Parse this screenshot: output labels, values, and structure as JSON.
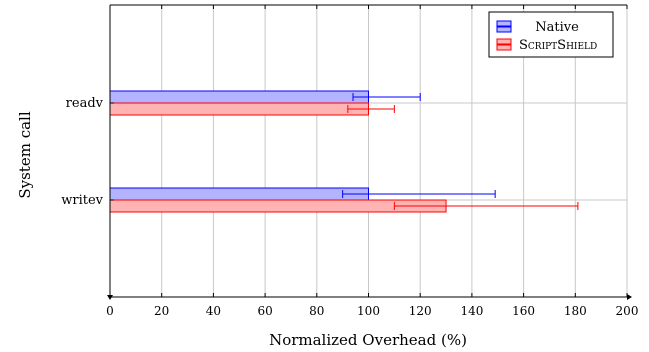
{
  "chart_data": {
    "type": "bar",
    "orientation": "horizontal",
    "xlabel": "Normalized Overhead (%)",
    "ylabel": "System call",
    "xlim": [
      0,
      200
    ],
    "x_ticks": [
      0,
      20,
      40,
      60,
      80,
      100,
      120,
      140,
      160,
      180,
      200
    ],
    "categories": [
      "readv",
      "writev"
    ],
    "grid": true,
    "legend_position": "top-right",
    "series": [
      {
        "name": "Native",
        "fill": "#b3b3ff",
        "stroke": "#0000ff",
        "values": [
          100,
          100
        ],
        "error_low": [
          94,
          90
        ],
        "error_high": [
          120,
          149
        ]
      },
      {
        "name": "SCRIPTSHIELD",
        "fill": "#ffb3b3",
        "stroke": "#ff0000",
        "values": [
          100,
          130
        ],
        "error_low": [
          92,
          110
        ],
        "error_high": [
          110,
          181
        ]
      }
    ]
  }
}
